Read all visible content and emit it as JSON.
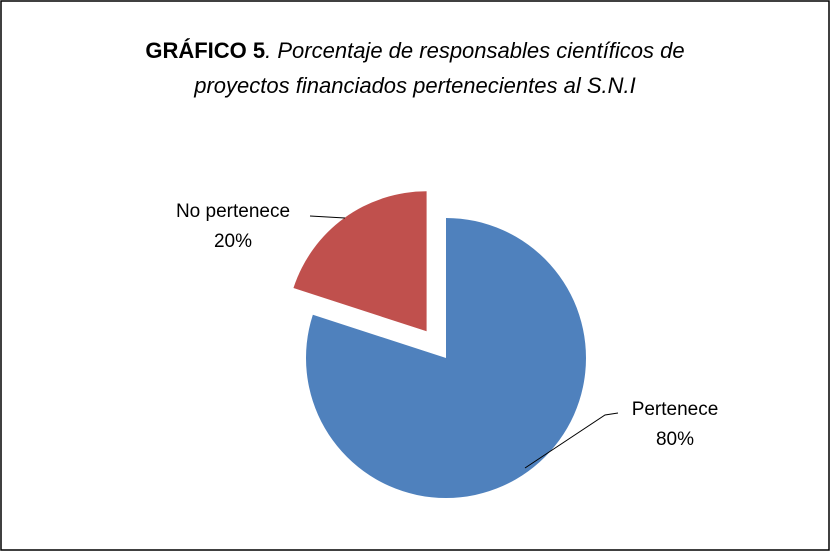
{
  "chart_data": {
    "type": "pie",
    "title": [
      "GRÁFICO 5",
      ". Porcentaje de responsables científicos de",
      "proyectos financiados pertenecientes al S.N.I"
    ],
    "categories": [
      "Pertenece",
      "No pertenece"
    ],
    "values": [
      80,
      20
    ],
    "value_labels": [
      "80%",
      "20%"
    ],
    "colors": [
      "#4f81bd",
      "#c0504d"
    ],
    "exploded": "No pertenece"
  }
}
